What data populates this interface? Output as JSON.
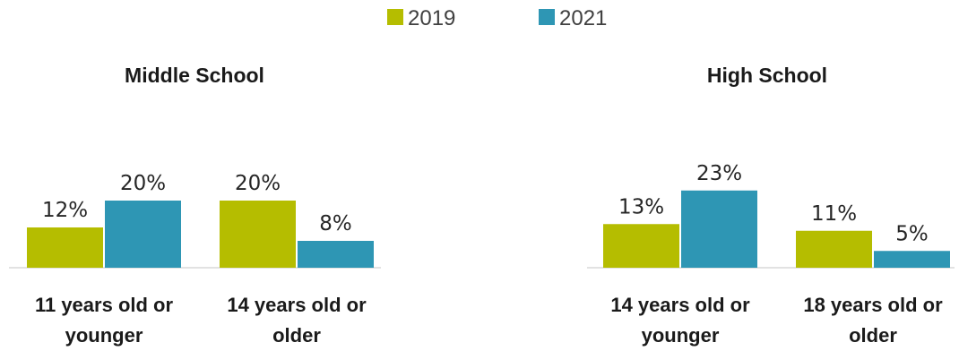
{
  "chart_data": {
    "type": "bar",
    "legend": {
      "placement": "top-center",
      "entries": [
        {
          "name": "2019",
          "color": "#b5bd00"
        },
        {
          "name": "2021",
          "color": "#2e96b4"
        }
      ]
    },
    "value_suffix": "%",
    "ylim": [
      0,
      30
    ],
    "grid": false,
    "panels": [
      {
        "title": "Middle School",
        "categories": [
          [
            "11 years old or",
            "younger"
          ],
          [
            "14 years old or",
            "older"
          ]
        ],
        "series": [
          {
            "name": "2019",
            "values": [
              12,
              20
            ]
          },
          {
            "name": "2021",
            "values": [
              20,
              8
            ]
          }
        ]
      },
      {
        "title": "High School",
        "categories": [
          [
            "14 years old or",
            "younger"
          ],
          [
            "18 years old or",
            "older"
          ]
        ],
        "series": [
          {
            "name": "2019",
            "values": [
              13,
              11
            ]
          },
          {
            "name": "2021",
            "values": [
              23,
              5
            ]
          }
        ]
      }
    ]
  }
}
